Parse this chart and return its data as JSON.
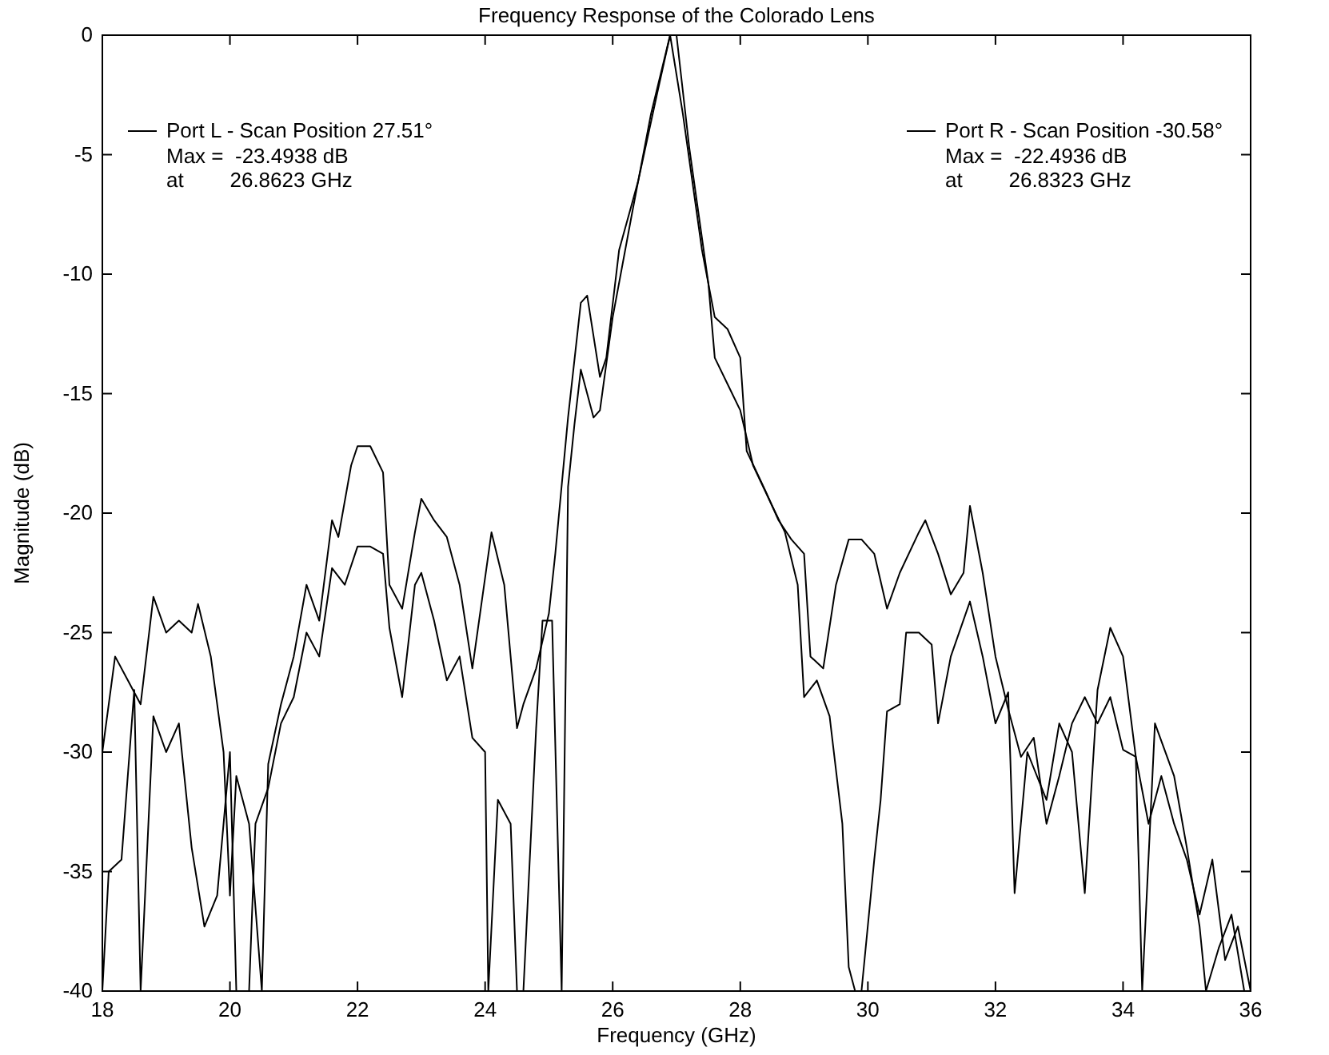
{
  "chart_data": {
    "type": "line",
    "title": "Frequency Response of the Colorado Lens",
    "xlabel": "Frequency (GHz)",
    "ylabel": "Magnitude (dB)",
    "xlim": [
      18,
      36
    ],
    "xticks": [
      18,
      20,
      22,
      24,
      26,
      28,
      30,
      32,
      34,
      36
    ],
    "ylim": [
      -40,
      0
    ],
    "yticks": [
      -40,
      -35,
      -30,
      -25,
      -20,
      -15,
      -10,
      -5,
      0
    ],
    "grid": false,
    "legend": "top",
    "marker": "none",
    "line_style": "solid",
    "annotations": [
      "Max =  -23.4938 dB\nat        26.8623 GHz",
      "Max =  -22.4936 dB\nat        26.8323 GHz"
    ],
    "series": [
      {
        "name": "Port L - Scan Position  27.51°",
        "color": "#000000",
        "x": [
          18,
          18.2,
          18.4,
          18.6,
          18.8,
          19,
          19.2,
          19.4,
          19.5,
          19.7,
          19.9,
          20,
          20.1,
          20.3,
          20.5,
          20.6,
          20.8,
          21,
          21.2,
          21.4,
          21.6,
          21.7,
          21.9,
          22,
          22.2,
          22.4,
          22.5,
          22.7,
          22.9,
          23,
          23.2,
          23.4,
          23.6,
          23.8,
          24.1,
          24.3,
          24.5,
          24.6,
          24.8,
          25,
          25.1,
          25.3,
          25.5,
          25.6,
          25.8,
          25.9,
          26.1,
          26.4,
          26.7,
          26.9,
          27,
          27.2,
          27.5,
          27.6,
          27.8,
          28,
          28.2,
          28.5,
          28.7,
          28.9,
          29,
          29.2,
          29.4,
          29.6,
          29.7,
          29.8,
          29.9,
          30.1,
          30.2,
          30.3,
          30.5,
          30.6,
          30.8,
          31,
          31.1,
          31.3,
          31.6,
          31.8,
          32,
          32.2,
          32.3,
          32.5,
          32.8,
          33,
          33.2,
          33.4,
          33.6,
          33.8,
          34,
          34.2,
          34.3,
          34.5,
          34.8,
          35,
          35.2,
          35.3,
          35.5,
          35.7,
          35.9,
          36
        ],
        "values": [
          -30,
          -26,
          -27,
          -28,
          -23.5,
          -25,
          -24.5,
          -25,
          -23.8,
          -26,
          -30,
          -36,
          -31,
          -33,
          -40,
          -30.5,
          -28,
          -26,
          -23,
          -24.5,
          -20.3,
          -21,
          -18,
          -17.2,
          -17.2,
          -18.3,
          -23,
          -24,
          -20.8,
          -19.4,
          -20.3,
          -21,
          -23,
          -26.5,
          -20.8,
          -23,
          -29,
          -28,
          -26.5,
          -24.2,
          -21.7,
          -16,
          -11.2,
          -10.9,
          -14.3,
          -13.5,
          -9,
          -6.1,
          -2.4,
          0,
          0,
          -4.7,
          -10.4,
          -13.5,
          -14.6,
          -15.7,
          -18,
          -19.7,
          -20.8,
          -23,
          -27.7,
          -27,
          -28.5,
          -33,
          -39,
          -40,
          -40,
          -34.5,
          -32,
          -28.3,
          -28,
          -25,
          -25,
          -25.5,
          -28.8,
          -26,
          -23.7,
          -26,
          -28.8,
          -27.5,
          -35.9,
          -30,
          -32,
          -28.8,
          -30,
          -35.9,
          -27.4,
          -24.8,
          -26,
          -30.2,
          -40,
          -28.8,
          -31,
          -34,
          -37.3,
          -40,
          -38.2,
          -36.8,
          -40,
          -40
        ]
      },
      {
        "name": "Port R - Scan Position  -30.58°",
        "color": "#000000",
        "x": [
          18,
          18.1,
          18.3,
          18.5,
          18.6,
          18.8,
          19,
          19.2,
          19.4,
          19.6,
          19.8,
          20,
          20.1,
          20.3,
          20.4,
          20.6,
          20.8,
          21,
          21.2,
          21.4,
          21.6,
          21.8,
          22,
          22.2,
          22.4,
          22.5,
          22.7,
          22.9,
          23,
          23.2,
          23.4,
          23.6,
          23.8,
          24,
          24.05,
          24.2,
          24.4,
          24.5,
          24.6,
          24.8,
          24.9,
          25.05,
          25.2,
          25.3,
          25.4,
          25.5,
          25.7,
          25.8,
          26,
          26.3,
          26.6,
          26.9,
          27.1,
          27.4,
          27.6,
          27.8,
          28,
          28.1,
          28.4,
          28.6,
          28.8,
          29,
          29.1,
          29.3,
          29.5,
          29.7,
          29.9,
          30.1,
          30.3,
          30.5,
          30.8,
          30.9,
          31.1,
          31.3,
          31.5,
          31.6,
          31.8,
          32,
          32.2,
          32.4,
          32.6,
          32.8,
          33,
          33.2,
          33.4,
          33.6,
          33.8,
          34,
          34.2,
          34.4,
          34.6,
          34.8,
          35,
          35.2,
          35.4,
          35.6,
          35.8,
          36
        ],
        "values": [
          -40,
          -35,
          -34.5,
          -27.4,
          -40,
          -28.5,
          -30,
          -28.8,
          -34,
          -37.3,
          -36,
          -30,
          -40,
          -40,
          -33,
          -31.5,
          -28.8,
          -27.7,
          -25,
          -26,
          -22.3,
          -23,
          -21.4,
          -21.4,
          -21.7,
          -24.8,
          -27.7,
          -23,
          -22.5,
          -24.5,
          -27,
          -26,
          -29.4,
          -30,
          -40,
          -32,
          -33,
          -40,
          -40,
          -29,
          -24.5,
          -24.5,
          -40,
          -18.9,
          -16.3,
          -14,
          -16,
          -15.7,
          -11.8,
          -7.5,
          -3.3,
          0,
          -3.3,
          -9,
          -11.8,
          -12.3,
          -13.5,
          -17.4,
          -19.1,
          -20.3,
          -21.1,
          -21.7,
          -26,
          -26.5,
          -23,
          -21.1,
          -21.1,
          -21.7,
          -24,
          -22.5,
          -20.8,
          -20.3,
          -21.7,
          -23.4,
          -22.5,
          -19.7,
          -22.5,
          -26,
          -28.2,
          -30.2,
          -29.4,
          -33,
          -31,
          -28.8,
          -27.7,
          -28.8,
          -27.7,
          -29.9,
          -30.2,
          -33,
          -31,
          -33,
          -34.5,
          -36.8,
          -34.5,
          -38.7,
          -37.3,
          -40
        ]
      }
    ]
  }
}
